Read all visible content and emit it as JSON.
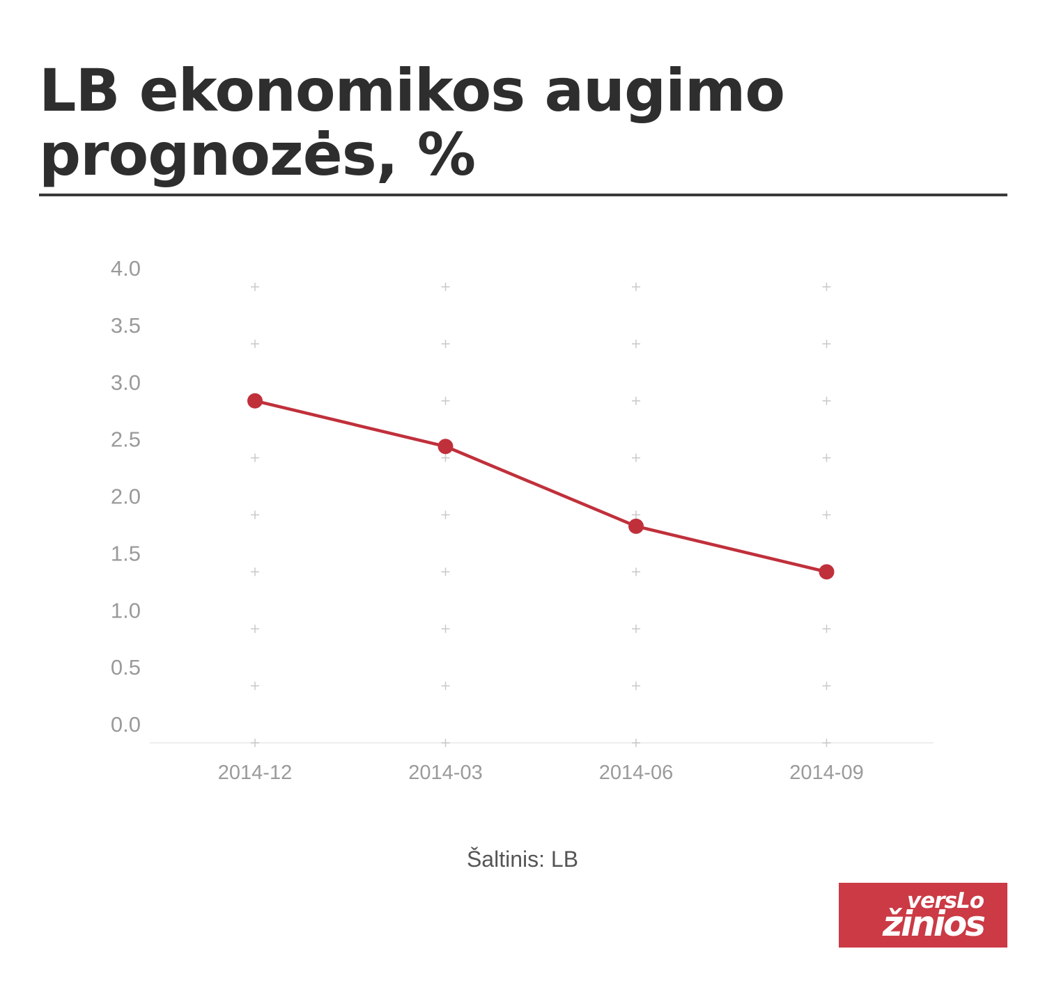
{
  "title": "LB ekonomikos augimo prognozės, %",
  "source": "Šaltinis: LB",
  "logo": {
    "line1": "versLo",
    "line2": "žinios"
  },
  "colors": {
    "line": "#c0303b",
    "grid": "#c8c8c8",
    "text": "#2e2e2e",
    "logo_bg": "#cb3a45"
  },
  "chart_data": {
    "type": "line",
    "title": "LB ekonomikos augimo prognozės, %",
    "categories": [
      "2014-12",
      "2014-03",
      "2014-06",
      "2014-09"
    ],
    "values": [
      3.0,
      2.6,
      1.9,
      1.5
    ],
    "xlabel": "",
    "ylabel": "",
    "ylim": [
      0,
      4
    ],
    "yticks": [
      "0.0",
      "0.5",
      "1.0",
      "1.5",
      "2.0",
      "2.5",
      "3.0",
      "3.5",
      "4.0"
    ],
    "grid": "plus-markers",
    "legend": "none"
  }
}
